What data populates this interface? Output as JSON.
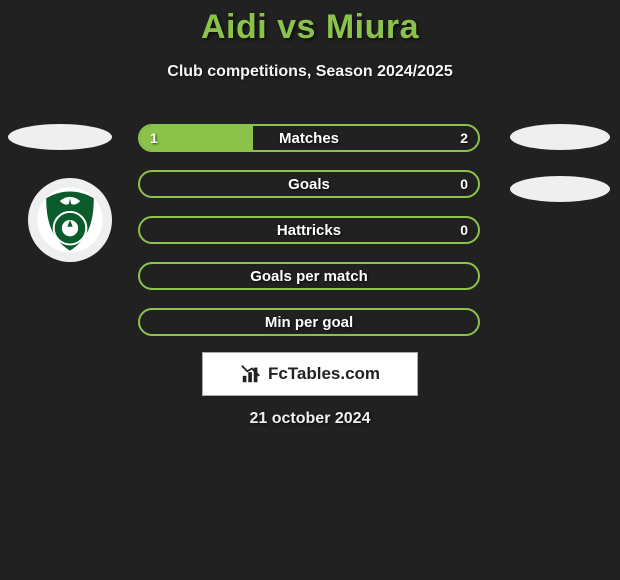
{
  "title": "Aidi vs Miura",
  "subtitle": "Club competitions, Season 2024/2025",
  "date": "21 october 2024",
  "fctables_label": "FcTables.com",
  "colors": {
    "background": "#212121",
    "accent": "#8bc34a",
    "badge": "#efefef",
    "text": "#ffffff",
    "fc_box_bg": "#ffffff",
    "fc_box_text": "#222222"
  },
  "rows": [
    {
      "label": "Matches",
      "left_val": "1",
      "right_val": "2",
      "left_pct": 33.3,
      "right_pct": 0
    },
    {
      "label": "Goals",
      "left_val": "",
      "right_val": "0",
      "left_pct": 0,
      "right_pct": 0
    },
    {
      "label": "Hattricks",
      "left_val": "",
      "right_val": "0",
      "left_pct": 0,
      "right_pct": 0
    },
    {
      "label": "Goals per match",
      "left_val": "",
      "right_val": "",
      "left_pct": 0,
      "right_pct": 0
    },
    {
      "label": "Min per goal",
      "left_val": "",
      "right_val": "",
      "left_pct": 0,
      "right_pct": 0
    }
  ],
  "logo": {
    "name": "ahli-saudi-crest",
    "shield_fill": "#0a5d2a",
    "inner_fill": "#ffffff",
    "accent": "#0a5d2a"
  }
}
